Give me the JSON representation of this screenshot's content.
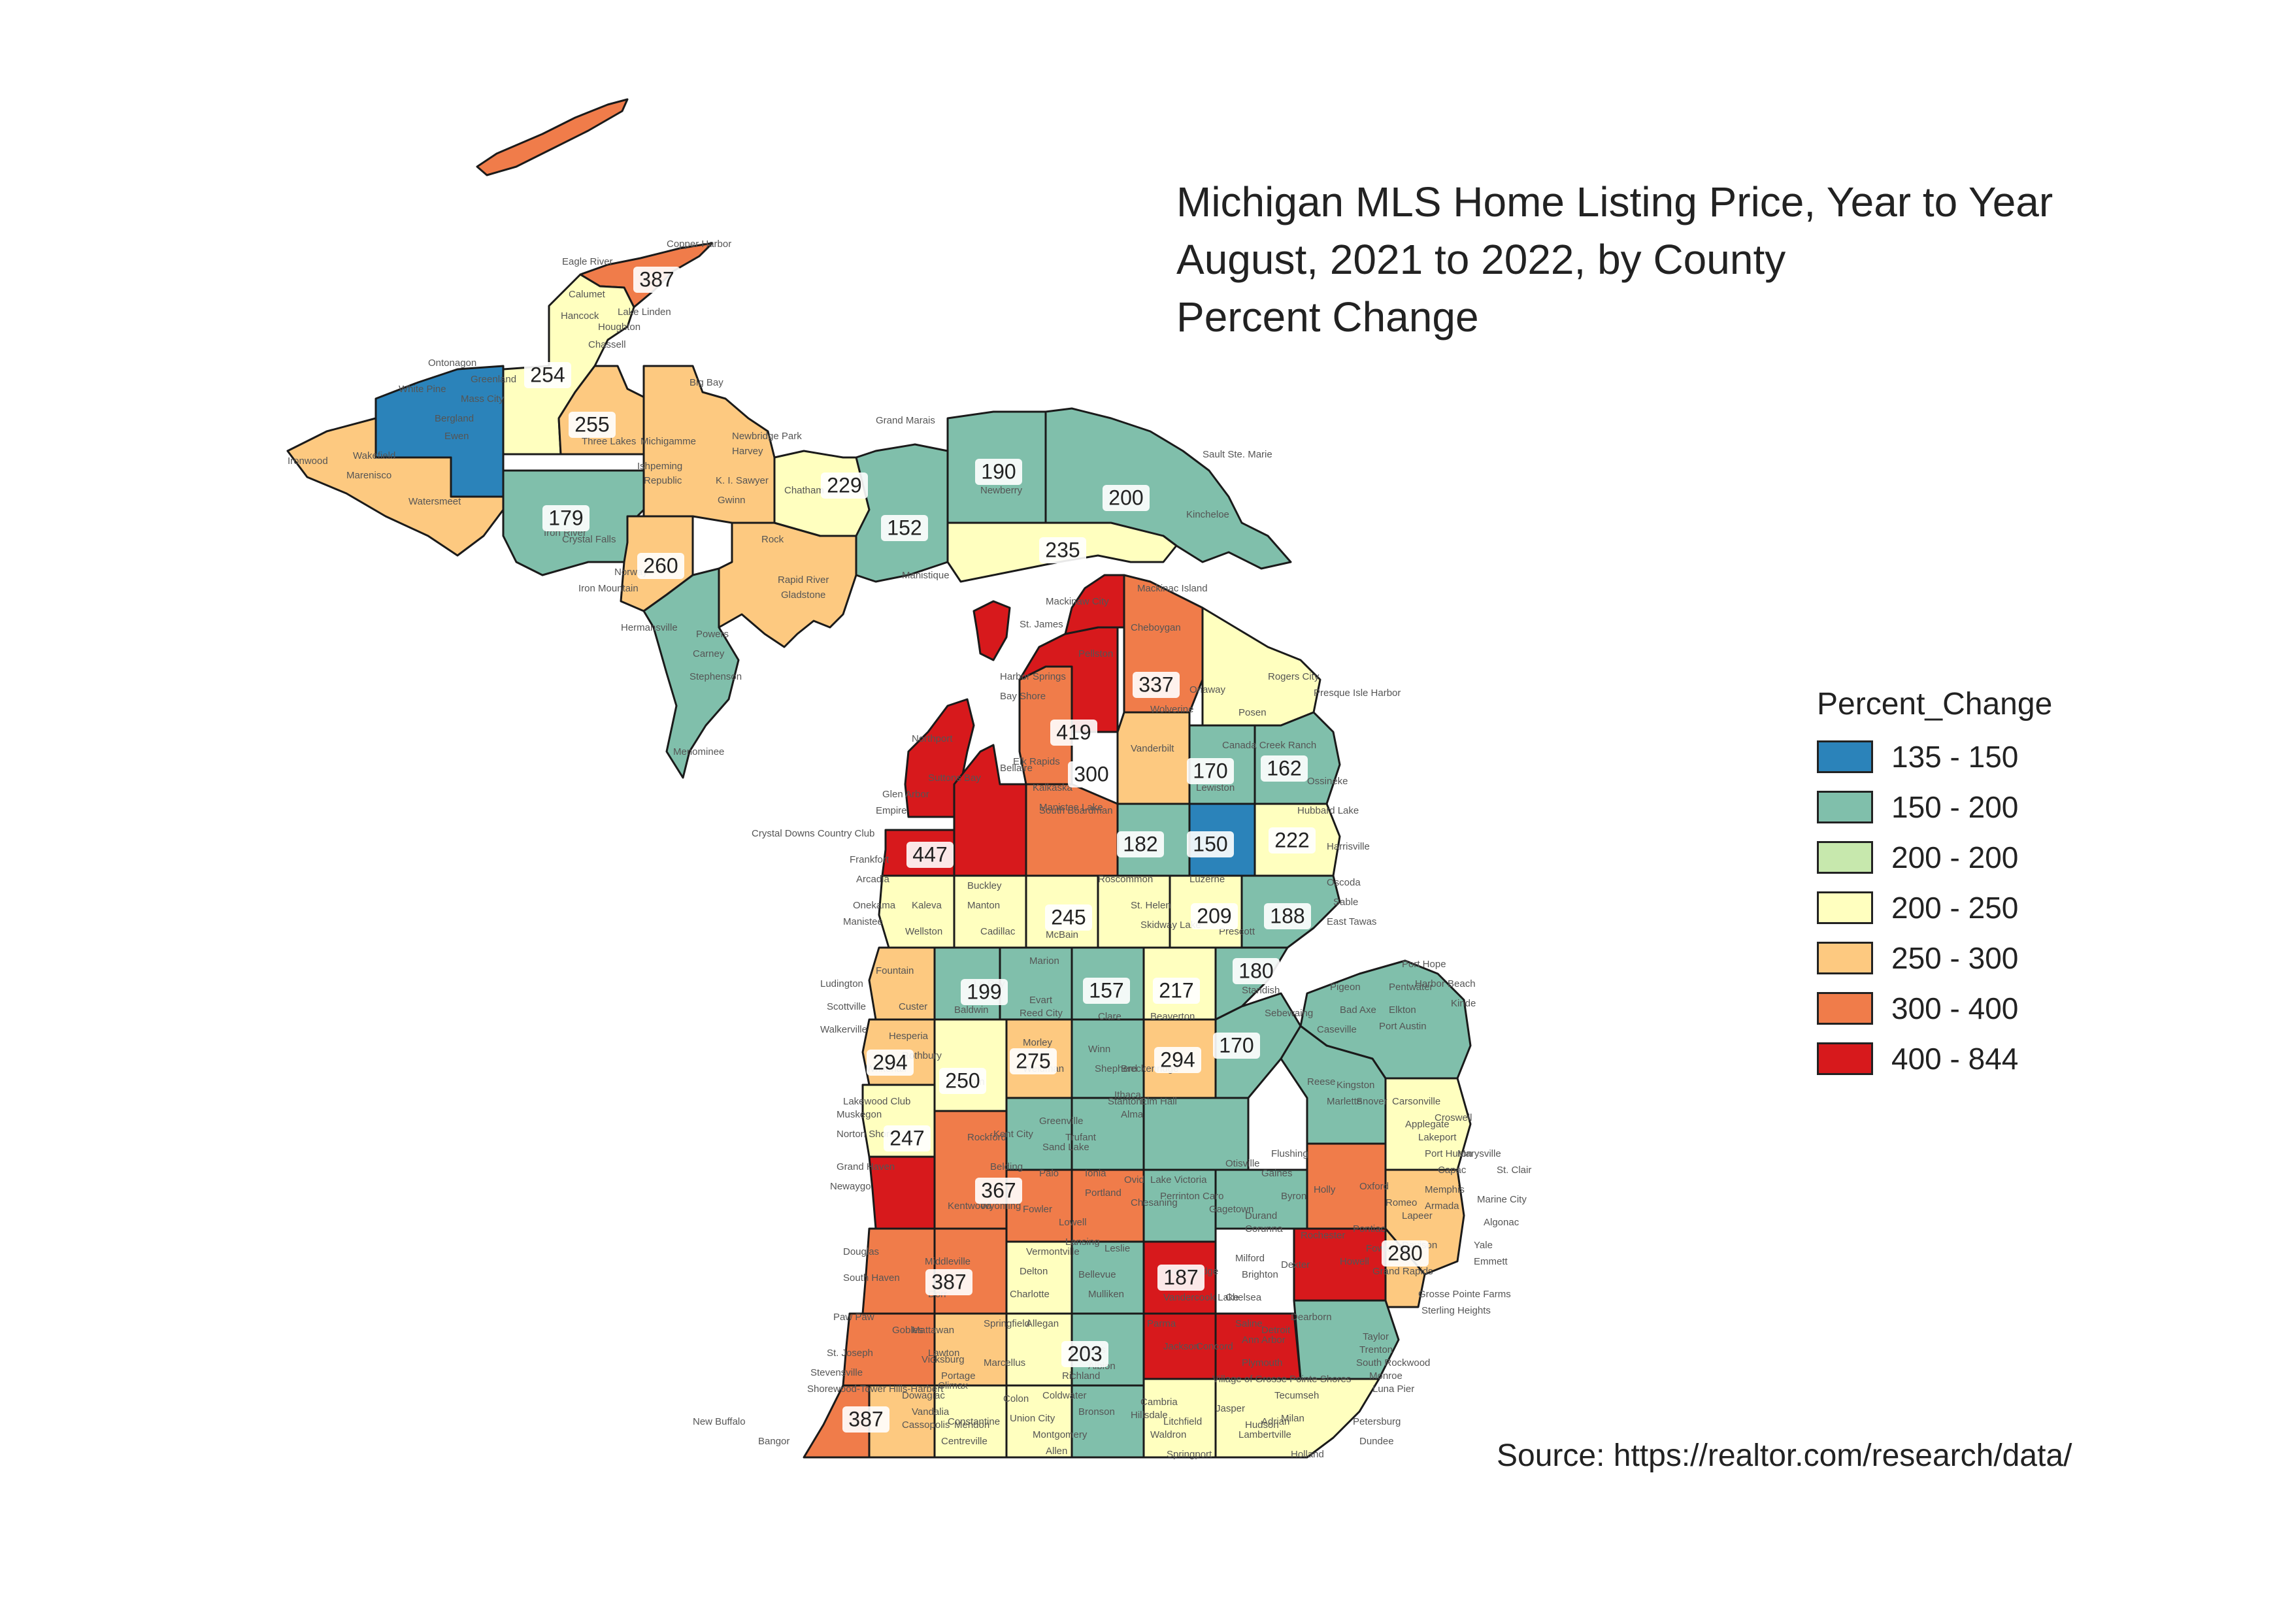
{
  "title": {
    "line1": "Michigan MLS Home Listing Price, Year to Year",
    "line2": "August, 2021 to 2022, by County",
    "line3": "Percent Change"
  },
  "legend": {
    "title": "Percent_Change",
    "items": [
      {
        "label": "135 - 150",
        "color": "#2b83ba"
      },
      {
        "label": "150 - 200",
        "color": "#80bfab"
      },
      {
        "label": "200 - 200",
        "color": "#c7e8ad"
      },
      {
        "label": "200 - 250",
        "color": "#ffffbf"
      },
      {
        "label": "250 - 300",
        "color": "#fdc980"
      },
      {
        "label": "300 - 400",
        "color": "#f07c4a"
      },
      {
        "label": "400 - 844",
        "color": "#d7191c"
      }
    ]
  },
  "source": "Source: https://realtor.com/research/data/",
  "county_values": [
    "387",
    "254",
    "255",
    "179",
    "260",
    "229",
    "152",
    "190",
    "200",
    "235",
    "337",
    "419",
    "300",
    "170",
    "162",
    "447",
    "182",
    "150",
    "222",
    "245",
    "209",
    "188",
    "199",
    "157",
    "217",
    "180",
    "294",
    "275",
    "294",
    "170",
    "250",
    "247",
    "367",
    "280",
    "387",
    "187",
    "203",
    "387"
  ],
  "place_labels": [
    "Copper Harbor",
    "Eagle River",
    "Calumet",
    "Lake Linden",
    "Hancock",
    "Houghton",
    "Chassell",
    "Ontonagon",
    "Greenland",
    "White Pine",
    "Mass City",
    "Bergland",
    "Ewen",
    "Ironwood",
    "Wakefield",
    "Marenisco",
    "Watersmeet",
    "Big Bay",
    "Three Lakes",
    "Michigamme",
    "Ishpeming",
    "Republic",
    "K. I. Sawyer",
    "Gwinn",
    "Newbridge Park",
    "Harvey",
    "Grand Marais",
    "Chatham",
    "Newberry",
    "Sault Ste. Marie",
    "Kincheloe",
    "Iron River",
    "Crystal Falls",
    "Iron Mountain",
    "Rock",
    "Rapid River",
    "Gladstone",
    "Manistique",
    "Powers",
    "Carney",
    "Stephenson",
    "Menominee",
    "Hermansville",
    "Norway",
    "Mackinac Island",
    "Mackinaw City",
    "Cheboygan",
    "St. James",
    "Pellston",
    "Harbor Springs",
    "Bay Shore",
    "Rogers City",
    "Presque Isle Harbor",
    "Onaway",
    "Posen",
    "Wolverine",
    "Vanderbilt",
    "Canada Creek Ranch",
    "Lewiston",
    "Hubbard Lake",
    "Harrisville",
    "Ossineke",
    "Northport",
    "Suttons Bay",
    "Glen Arbor",
    "Empire",
    "Crystal Downs Country Club",
    "Frankfort",
    "Arcadia",
    "Bellaire",
    "Elk Rapids",
    "Kalkaska",
    "South Boardman",
    "Manistee Lake",
    "Roscommon",
    "St. Helen",
    "Skidway Lake",
    "Luzerne",
    "Prescott",
    "Oscoda",
    "East Tawas",
    "Sable",
    "Onekama",
    "Manistee",
    "Kaleva",
    "Wellston",
    "Buckley",
    "Manton",
    "Cadillac",
    "McBain",
    "Ludington",
    "Scottville",
    "Custer",
    "Fountain",
    "Baldwin",
    "Le Roy",
    "Marion",
    "Evart",
    "Reed City",
    "Clare",
    "Beaverton",
    "Standish",
    "Sebewaing",
    "Caseville",
    "Pigeon",
    "Bad Axe",
    "Elkton",
    "Port Austin",
    "Port Hope",
    "Harbor Beach",
    "Kinde",
    "Pentwater",
    "Walkerville",
    "Hesperia",
    "Rothbury",
    "Whitehall",
    "Lakewood Club",
    "Muskegon",
    "Norton Shores",
    "Grand Haven",
    "Newaygo",
    "Barryton",
    "Morley",
    "Weidman",
    "Winn",
    "Shepherd",
    "Breckenridge",
    "Ithaca",
    "Alma",
    "Elm Hall",
    "Stanton",
    "Trufant",
    "Greenville",
    "Sand Lake",
    "Kent City",
    "Rockford",
    "Belding",
    "Palo",
    "Ionia",
    "Portland",
    "Lowell",
    "Fowler",
    "Ovid",
    "Lake Victoria",
    "Perrinton",
    "Chesaning",
    "Otisville",
    "Flushing",
    "Gaines",
    "Durand",
    "Byron",
    "Corunna",
    "Gagetown",
    "Caro",
    "Reese",
    "Kingston",
    "Marlette",
    "Snover",
    "Carsonville",
    "Applegate",
    "Croswell",
    "Lakeport",
    "Port Huron",
    "Marysville",
    "St. Clair",
    "Marine City",
    "Algonac",
    "Yale",
    "Emmett",
    "Capac",
    "Memphis",
    "Armada",
    "Romeo",
    "Lapeer",
    "Davison",
    "Holly",
    "Oxford",
    "Rochester",
    "Pontiac",
    "Fowlerville",
    "Howell",
    "Milford",
    "Brighton",
    "Dexter",
    "Chelsea",
    "Saline",
    "Ann Arbor",
    "Plymouth",
    "Detroit",
    "Dearborn",
    "Taylor",
    "Trenton",
    "South Rockwood",
    "Monroe",
    "Luna Pier",
    "Petersburg",
    "Dundee",
    "Milan",
    "Adrian",
    "Tecumseh",
    "Hudson",
    "Jasper",
    "Lambertville",
    "Holland",
    "Douglas",
    "South Haven",
    "Paw Paw",
    "St. Joseph",
    "Stevensville",
    "Shorewood-Tower Hills-Harbert",
    "New Buffalo",
    "Bangor",
    "Gobles",
    "Mattawan",
    "Lawton",
    "Portage",
    "Vicksburg",
    "Climax",
    "Marcellus",
    "Dowagiac",
    "Vandalia",
    "Cassopolis",
    "Constantine",
    "Centreville",
    "Mendon",
    "Colon",
    "Union City",
    "Coldwater",
    "Bronson",
    "Montgomery",
    "Allen",
    "Hillsdale",
    "Litchfield",
    "Cambria",
    "Waldron",
    "Springport",
    "Parma",
    "Jackson",
    "Concord",
    "Albion",
    "Athens",
    "Richland",
    "Springfield",
    "Allegan",
    "Dorr",
    "Middleville",
    "Vermontville",
    "Delton",
    "Charlotte",
    "Bellevue",
    "Mulliken",
    "Lansing",
    "Leslie",
    "Stockbridge",
    "Vandercook Lake",
    "Village of Grosse Pointe Shores",
    "Grosse Pointe Farms",
    "Sterling Heights",
    "Grand Rapids",
    "Kentwood",
    "Wyoming"
  ]
}
